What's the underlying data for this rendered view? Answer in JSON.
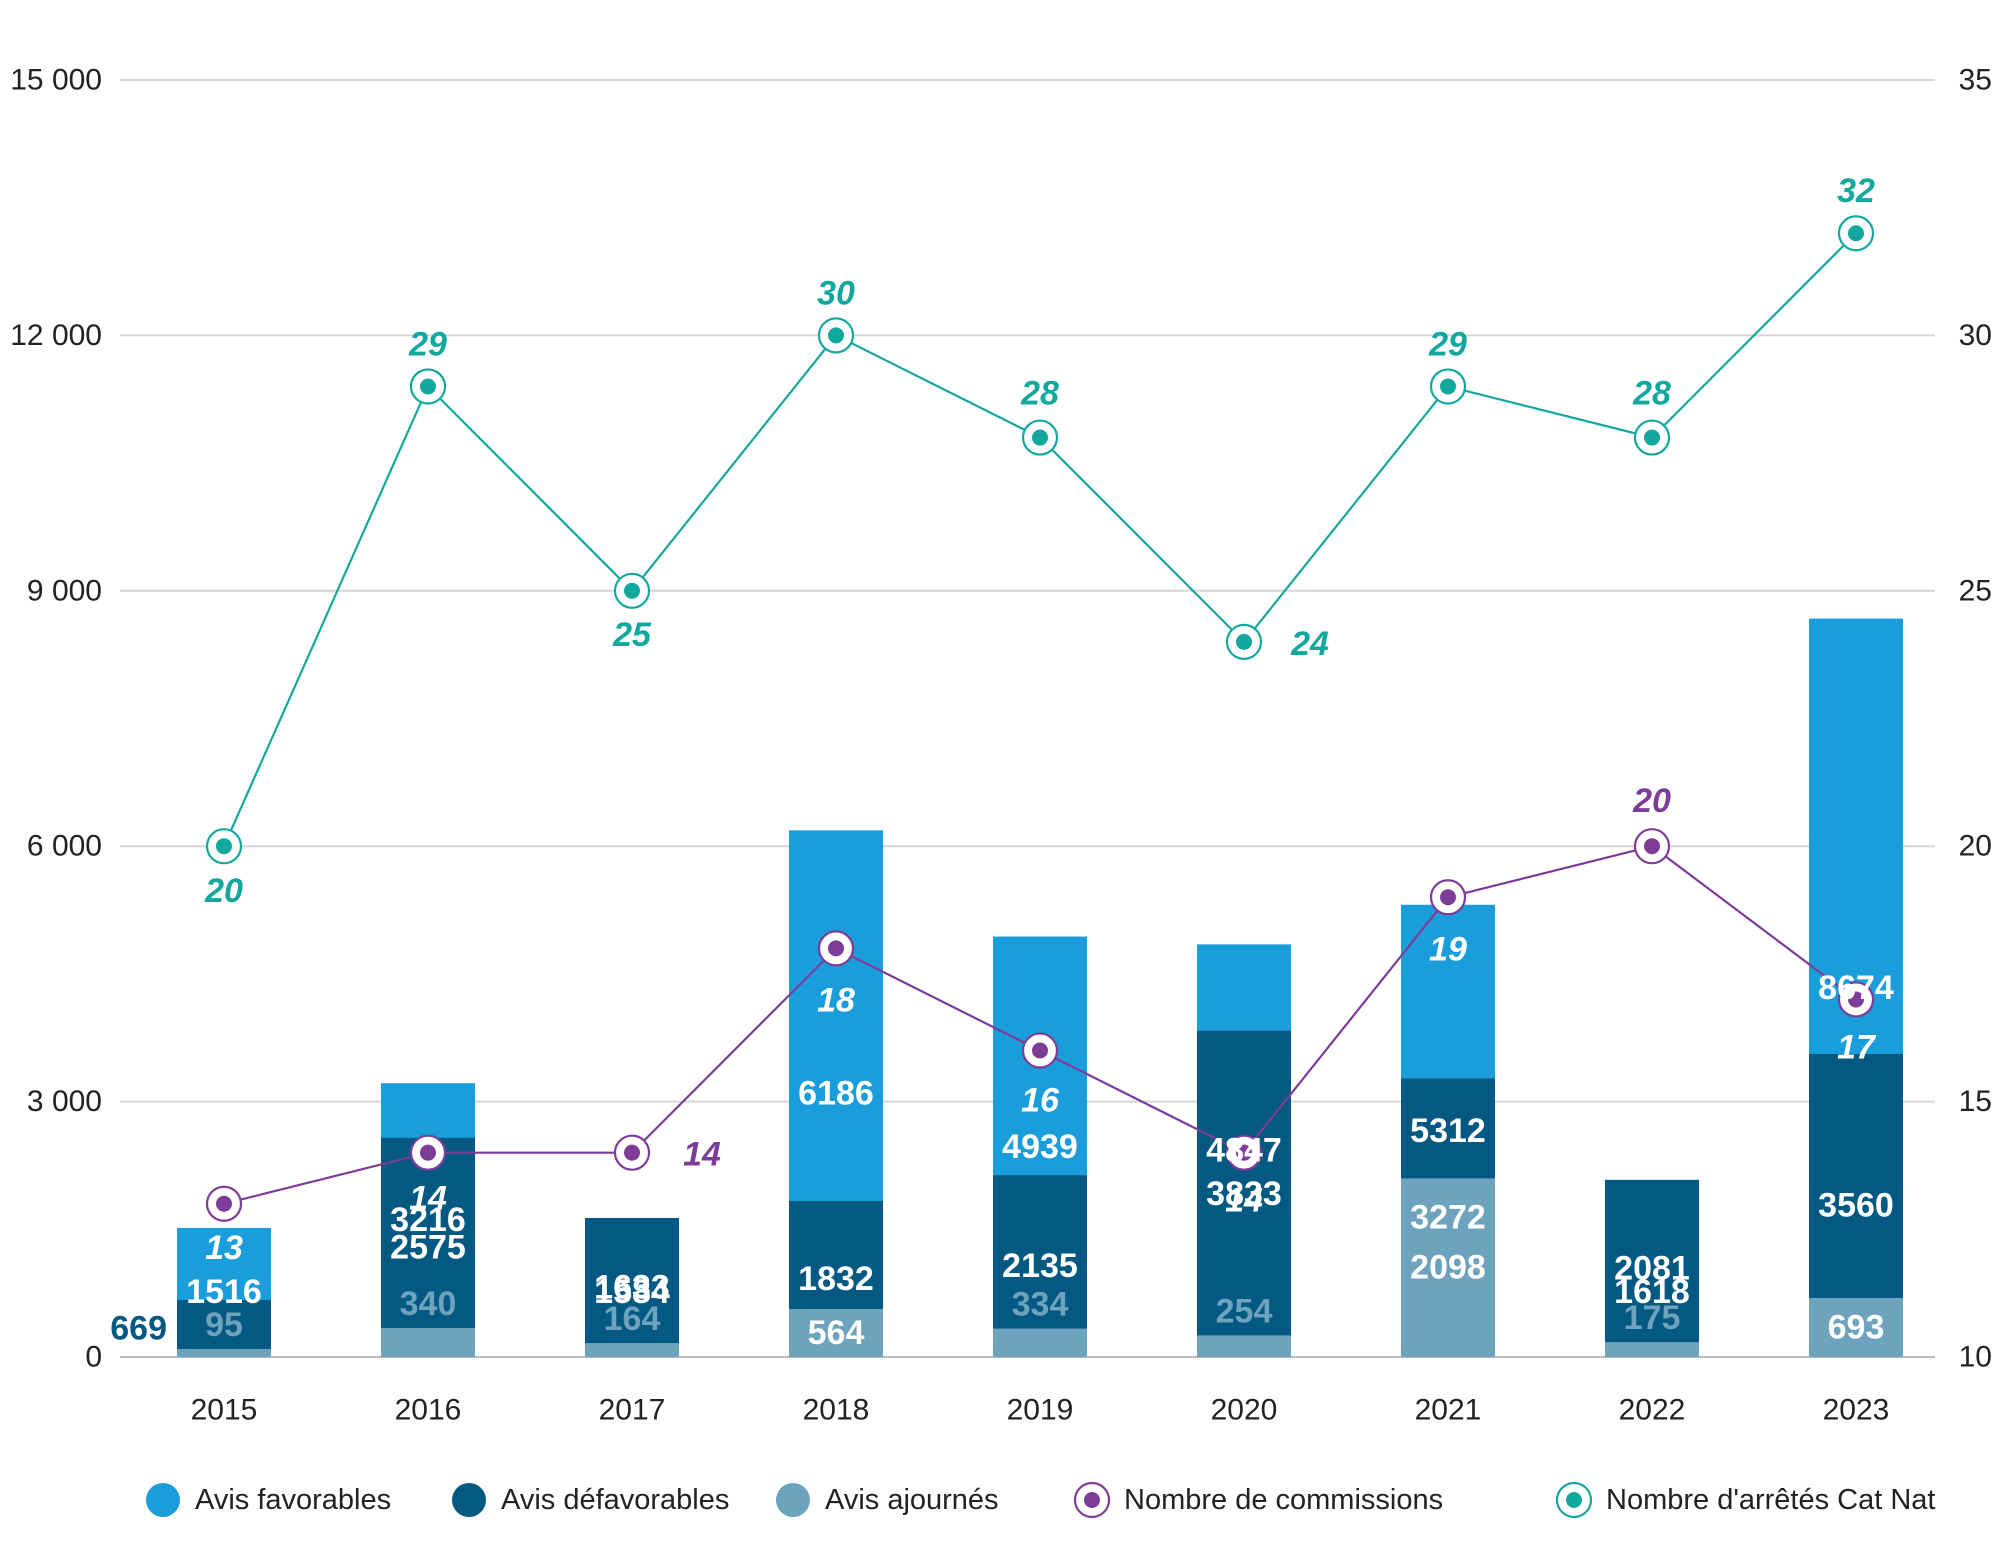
{
  "chart_data": {
    "type": "bar",
    "stacked": true,
    "categories": [
      "2015",
      "2016",
      "2017",
      "2018",
      "2019",
      "2020",
      "2021",
      "2022",
      "2023"
    ],
    "series": [
      {
        "name": "Avis favorables",
        "axis": "left",
        "kind": "bar",
        "color": "#1a9edb",
        "values": [
          1516,
          3216,
          1584,
          6186,
          4939,
          4847,
          5312,
          1618,
          8674
        ]
      },
      {
        "name": "Avis défavorables",
        "axis": "left",
        "kind": "bar",
        "color": "#045983",
        "values": [
          669,
          2575,
          1633,
          1832,
          2135,
          3833,
          3272,
          2081,
          3560
        ]
      },
      {
        "name": "Avis ajournés",
        "axis": "left",
        "kind": "bar",
        "color": "#6ea3be",
        "values": [
          95,
          340,
          164,
          564,
          334,
          254,
          2098,
          175,
          693
        ]
      },
      {
        "name": "Nombre de commissions",
        "axis": "right",
        "kind": "line",
        "color": "#7d3c98",
        "values": [
          13,
          14,
          14,
          18,
          16,
          14,
          19,
          20,
          17
        ]
      },
      {
        "name": "Nombre d'arrêtés Cat Nat",
        "axis": "right",
        "kind": "line",
        "color": "#13a89e",
        "values": [
          20,
          29,
          25,
          30,
          28,
          24,
          29,
          28,
          32
        ]
      }
    ],
    "left_axis": {
      "ylim": [
        0,
        15000
      ],
      "ticks": [
        0,
        3000,
        6000,
        9000,
        12000,
        15000
      ],
      "tick_labels": [
        "0",
        "3 000",
        "6 000",
        "9 000",
        "12 000",
        "15 000"
      ]
    },
    "right_axis": {
      "ylim": [
        10,
        35
      ],
      "ticks": [
        10,
        15,
        20,
        25,
        30,
        35
      ],
      "tick_labels": [
        "10",
        "15",
        "20",
        "25",
        "30",
        "35"
      ]
    },
    "grid": true,
    "legend_position": "bottom"
  }
}
